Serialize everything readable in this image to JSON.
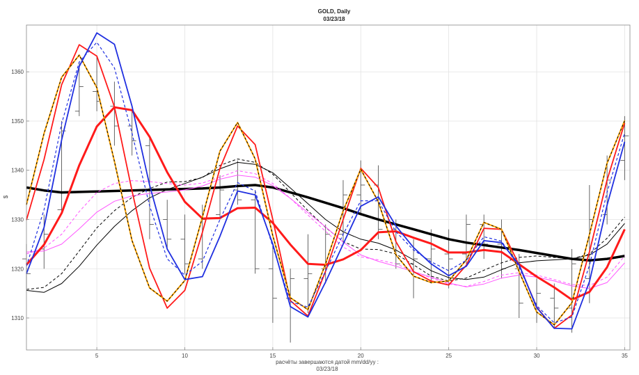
{
  "chart_data": {
    "type": "line",
    "title": "GOLD,          Daily",
    "subtitle": "03/23/18",
    "xlabel": "расчёты завершаются датой  mm/dd/yy :",
    "xlabel2": "03/23/18",
    "ylabel": "$",
    "xlim": [
      1,
      35.3
    ],
    "ylim": [
      1303.5,
      1369.5
    ],
    "xticks": [
      5,
      10,
      15,
      20,
      25,
      30,
      35
    ],
    "yticks": [
      1310,
      1320,
      1330,
      1340,
      1350,
      1360
    ],
    "grid": true,
    "colors": {
      "blue": "#1f2fe0",
      "red": "#ff1a1a",
      "orange": "#ffa500",
      "black": "#000000",
      "magenta": "#ff55ff",
      "gray": "#555555"
    },
    "bars": [
      {
        "x": 1,
        "high": 1325,
        "low": 1316,
        "open": 1322,
        "close": 1319
      },
      {
        "x": 2,
        "high": 1331,
        "low": 1320,
        "open": 1324,
        "close": 1327
      },
      {
        "x": 3,
        "high": 1350,
        "low": 1331,
        "open": 1332,
        "close": 1348
      },
      {
        "x": 4,
        "high": 1362,
        "low": 1351,
        "open": 1352,
        "close": 1357
      },
      {
        "x": 5,
        "high": 1363,
        "low": 1352,
        "open": 1356,
        "close": 1354
      },
      {
        "x": 6,
        "high": 1358,
        "low": 1345,
        "open": 1353,
        "close": 1349
      },
      {
        "x": 7,
        "high": 1352,
        "low": 1343,
        "open": 1349,
        "close": 1346
      },
      {
        "x": 8,
        "high": 1347,
        "low": 1326,
        "open": 1345,
        "close": 1329
      },
      {
        "x": 9,
        "high": 1334,
        "low": 1324,
        "open": 1330,
        "close": 1326
      },
      {
        "x": 10,
        "high": 1331,
        "low": 1319,
        "open": 1326,
        "close": 1321
      },
      {
        "x": 11,
        "high": 1333,
        "low": 1320,
        "open": 1322,
        "close": 1330
      },
      {
        "x": 12,
        "high": 1339,
        "low": 1330,
        "open": 1331,
        "close": 1336
      },
      {
        "x": 13,
        "high": 1342,
        "low": 1333,
        "open": 1336,
        "close": 1334
      },
      {
        "x": 14,
        "high": 1336,
        "low": 1319,
        "open": 1334,
        "close": 1320
      },
      {
        "x": 15,
        "high": 1325,
        "low": 1309,
        "open": 1320,
        "close": 1314
      },
      {
        "x": 16,
        "high": 1320,
        "low": 1305,
        "open": 1314,
        "close": 1318
      },
      {
        "x": 17,
        "high": 1327,
        "low": 1311,
        "open": 1318,
        "close": 1319
      },
      {
        "x": 18,
        "high": 1329,
        "low": 1317,
        "open": 1320,
        "close": 1327
      },
      {
        "x": 19,
        "high": 1338,
        "low": 1325,
        "open": 1327,
        "close": 1335
      },
      {
        "x": 20,
        "high": 1342,
        "low": 1331,
        "open": 1335,
        "close": 1337
      },
      {
        "x": 21,
        "high": 1341,
        "low": 1326,
        "open": 1337,
        "close": 1328
      },
      {
        "x": 22,
        "high": 1330,
        "low": 1320,
        "open": 1328,
        "close": 1321
      },
      {
        "x": 23,
        "high": 1326,
        "low": 1314,
        "open": 1321,
        "close": 1322
      },
      {
        "x": 24,
        "high": 1328,
        "low": 1317,
        "open": 1322,
        "close": 1324
      },
      {
        "x": 25,
        "high": 1328,
        "low": 1316,
        "open": 1323,
        "close": 1322
      },
      {
        "x": 26,
        "high": 1331,
        "low": 1321,
        "open": 1323,
        "close": 1329
      },
      {
        "x": 27,
        "high": 1331,
        "low": 1322,
        "open": 1329,
        "close": 1325
      },
      {
        "x": 28,
        "high": 1330,
        "low": 1318,
        "open": 1325,
        "close": 1320
      },
      {
        "x": 29,
        "high": 1323,
        "low": 1310,
        "open": 1320,
        "close": 1313
      },
      {
        "x": 30,
        "high": 1318,
        "low": 1309,
        "open": 1313,
        "close": 1315
      },
      {
        "x": 31,
        "high": 1317,
        "low": 1308,
        "open": 1314,
        "close": 1312
      },
      {
        "x": 32,
        "high": 1324,
        "low": 1307,
        "open": 1312,
        "close": 1321
      },
      {
        "x": 33,
        "high": 1337,
        "low": 1313,
        "open": 1318,
        "close": 1330
      },
      {
        "x": 34,
        "high": 1343,
        "low": 1329,
        "open": 1331,
        "close": 1338
      },
      {
        "x": 35,
        "high": 1351,
        "low": 1338,
        "open": 1342,
        "close": 1347
      }
    ],
    "series": [
      {
        "color": "#000000",
        "width": 3.5,
        "dash": "",
        "x": [
          1,
          2,
          3,
          4,
          5,
          6,
          7,
          8,
          9,
          10,
          11,
          12,
          13,
          14,
          15,
          16,
          17,
          18,
          19,
          20,
          21,
          22,
          23,
          24,
          25,
          26,
          27,
          28,
          29,
          30,
          31,
          32,
          33,
          34,
          35
        ],
        "values": [
          1336.5,
          1335.9,
          1335.5,
          1335.6,
          1335.7,
          1335.8,
          1335.9,
          1336.0,
          1336.1,
          1336.2,
          1336.3,
          1336.5,
          1336.8,
          1337.0,
          1336.5,
          1335.5,
          1334.5,
          1333.4,
          1332.3,
          1331.1,
          1330.0,
          1329.0,
          1328.0,
          1327.0,
          1326.0,
          1325.3,
          1324.8,
          1324.3,
          1323.8,
          1323.2,
          1322.6,
          1322.0,
          1321.7,
          1322.0,
          1322.6
        ]
      },
      {
        "color": "#000000",
        "width": 1,
        "dash": "",
        "x": [
          1,
          2,
          3,
          4,
          5,
          6,
          7,
          8,
          9,
          10,
          11,
          12,
          13,
          14,
          15,
          16,
          17,
          18,
          19,
          20,
          21,
          22,
          23,
          24,
          25,
          26,
          27,
          28,
          29,
          30,
          31,
          32,
          33,
          34,
          35
        ],
        "values": [
          1315.6,
          1315.2,
          1317.0,
          1320.5,
          1324.8,
          1328.6,
          1331.8,
          1334.4,
          1336.1,
          1337.3,
          1338.6,
          1340.3,
          1341.6,
          1341.2,
          1339.5,
          1336.4,
          1333.2,
          1330.0,
          1327.5,
          1326.0,
          1325.2,
          1323.8,
          1321.8,
          1319.6,
          1318.2,
          1317.8,
          1318.3,
          1319.8,
          1321.2,
          1321.6,
          1321.8,
          1322.0,
          1322.8,
          1325.0,
          1329.2
        ]
      },
      {
        "color": "#000000",
        "width": 1,
        "dash": "4,3",
        "x": [
          1,
          2,
          3,
          4,
          5,
          6,
          7,
          8,
          9,
          10,
          11,
          12,
          13,
          14,
          15,
          16,
          17,
          18,
          19,
          20,
          21,
          22,
          23,
          24,
          25,
          26,
          27,
          28,
          29,
          30,
          31,
          32,
          33,
          34,
          35
        ],
        "values": [
          1315.8,
          1316.2,
          1319.0,
          1323.6,
          1328.3,
          1331.8,
          1334.5,
          1336.3,
          1337.6,
          1337.7,
          1338.5,
          1341.0,
          1342.3,
          1341.6,
          1339.2,
          1335.5,
          1331.8,
          1328.4,
          1325.5,
          1324.0,
          1323.9,
          1323.0,
          1320.8,
          1318.5,
          1317.5,
          1318.1,
          1319.7,
          1321.2,
          1322.3,
          1322.6,
          1322.3,
          1322.0,
          1323.0,
          1326.2,
          1330.5
        ]
      },
      {
        "color": "#ff55ff",
        "width": 1,
        "dash": "",
        "x": [
          1,
          2,
          3,
          4,
          5,
          6,
          7,
          8,
          9,
          10,
          11,
          12,
          13,
          14,
          15,
          16,
          17,
          18,
          19,
          20,
          21,
          22,
          23,
          24,
          25,
          26,
          27,
          28,
          29,
          30,
          31,
          32,
          33,
          34,
          35
        ],
        "values": [
          1323.4,
          1323.6,
          1325.0,
          1328.1,
          1331.5,
          1333.7,
          1334.8,
          1335.3,
          1335.6,
          1336.0,
          1336.8,
          1338.2,
          1339.0,
          1338.6,
          1336.9,
          1334.3,
          1331.4,
          1328.5,
          1325.4,
          1322.8,
          1321.5,
          1320.5,
          1319.4,
          1318.3,
          1317.1,
          1316.3,
          1316.9,
          1318.1,
          1318.7,
          1318.3,
          1317.5,
          1316.5,
          1316.0,
          1317.2,
          1321.2
        ]
      },
      {
        "color": "#ff55ff",
        "width": 1,
        "dash": "4,3",
        "x": [
          1,
          2,
          3,
          4,
          5,
          6,
          7,
          8,
          9,
          10,
          11,
          12,
          13,
          14,
          15,
          16,
          17,
          18,
          19,
          20,
          21,
          22,
          23,
          24,
          25,
          26,
          27,
          28,
          29,
          30,
          31,
          32,
          33,
          34,
          35
        ],
        "values": [
          1323.0,
          1324.2,
          1327.0,
          1331.6,
          1335.5,
          1337.3,
          1337.9,
          1337.7,
          1337.3,
          1337.0,
          1337.4,
          1338.6,
          1339.9,
          1339.3,
          1337.3,
          1334.3,
          1330.9,
          1327.6,
          1324.4,
          1322.4,
          1321.8,
          1321.0,
          1319.5,
          1318.1,
          1316.9,
          1316.4,
          1317.4,
          1318.7,
          1319.2,
          1318.7,
          1317.8,
          1316.8,
          1316.6,
          1318.3,
          1322.6
        ]
      },
      {
        "color": "#ff1a1a",
        "width": 3,
        "dash": "",
        "x": [
          1,
          2,
          3,
          4,
          5,
          6,
          7,
          8,
          9,
          10,
          11,
          12,
          13,
          14,
          15,
          16,
          17,
          18,
          19,
          20,
          21,
          22,
          23,
          24,
          25,
          26,
          27,
          28,
          29,
          30,
          31,
          32,
          33,
          34,
          35
        ],
        "values": [
          1320.8,
          1324.9,
          1331.3,
          1341.0,
          1348.9,
          1352.8,
          1352.2,
          1346.8,
          1339.6,
          1333.6,
          1330.2,
          1330.3,
          1332.3,
          1332.4,
          1329.3,
          1324.9,
          1321.0,
          1320.8,
          1321.9,
          1323.8,
          1327.4,
          1327.6,
          1326.3,
          1325.1,
          1323.3,
          1323.3,
          1323.8,
          1323.4,
          1320.9,
          1318.4,
          1316.2,
          1313.7,
          1315.3,
          1320.3,
          1328.0
        ]
      },
      {
        "color": "#ff1a1a",
        "width": 1.8,
        "dash": "",
        "x": [
          1,
          2,
          3,
          4,
          5,
          6,
          7,
          8,
          9,
          10,
          11,
          12,
          13,
          14,
          15,
          16,
          17,
          18,
          19,
          20,
          21,
          22,
          23,
          24,
          25,
          26,
          27,
          28,
          29,
          30,
          31,
          32,
          33,
          34,
          35
        ],
        "values": [
          1329.9,
          1342.2,
          1357.4,
          1365.5,
          1363.2,
          1352.9,
          1335.8,
          1320.1,
          1312.0,
          1315.6,
          1327.4,
          1340.4,
          1349.0,
          1345.2,
          1330.0,
          1313.5,
          1310.4,
          1319.5,
          1330.0,
          1340.4,
          1336.5,
          1325.5,
          1319.4,
          1317.5,
          1316.7,
          1320.7,
          1328.2,
          1328.0,
          1320.8,
          1312.2,
          1307.9,
          1310.6,
          1323.5,
          1338.0,
          1349.6
        ]
      },
      {
        "color": "#ffa500",
        "width": 2,
        "dash": "",
        "x": [
          1,
          2,
          3,
          4,
          5,
          6,
          7,
          8,
          9,
          10,
          11,
          12,
          13,
          14,
          15,
          16,
          17,
          18,
          19,
          20,
          21,
          22,
          23,
          24,
          25,
          26,
          27,
          28,
          29,
          30,
          31,
          32,
          33,
          34,
          35
        ],
        "values": [
          1333.0,
          1347.5,
          1358.9,
          1363.4,
          1356.8,
          1341.8,
          1325.7,
          1316.1,
          1313.4,
          1317.6,
          1330.5,
          1343.9,
          1349.7,
          1342.3,
          1326.7,
          1314.1,
          1311.7,
          1321.0,
          1331.8,
          1340.2,
          1333.6,
          1322.8,
          1318.5,
          1317.2,
          1317.5,
          1321.8,
          1329.4,
          1328.0,
          1319.4,
          1311.2,
          1308.6,
          1313.1,
          1327.0,
          1341.4,
          1350.1
        ]
      },
      {
        "color": "#000000",
        "width": 1,
        "dash": "3,3",
        "x": [
          1,
          2,
          3,
          4,
          5,
          6,
          7,
          8,
          9,
          10,
          11,
          12,
          13,
          14,
          15,
          16,
          17,
          18,
          19,
          20,
          21,
          22,
          23,
          24,
          25,
          26,
          27,
          28,
          29,
          30,
          31,
          32,
          33,
          34,
          35
        ],
        "values": [
          1333.0,
          1347.5,
          1358.9,
          1363.4,
          1356.8,
          1341.8,
          1325.7,
          1316.1,
          1313.4,
          1317.6,
          1330.5,
          1343.9,
          1349.7,
          1342.3,
          1326.7,
          1314.1,
          1311.7,
          1321.0,
          1331.8,
          1340.2,
          1333.6,
          1322.8,
          1318.5,
          1317.2,
          1317.5,
          1321.8,
          1329.4,
          1328.0,
          1319.4,
          1311.2,
          1308.6,
          1313.1,
          1327.0,
          1341.4,
          1350.1
        ]
      },
      {
        "color": "#1f2fe0",
        "width": 1.8,
        "dash": "",
        "x": [
          1,
          2,
          3,
          4,
          5,
          6,
          7,
          8,
          9,
          10,
          11,
          12,
          13,
          14,
          15,
          16,
          17,
          18,
          19,
          20,
          21,
          22,
          23,
          24,
          25,
          26,
          27,
          28,
          29,
          30,
          31,
          32,
          33,
          34,
          35
        ],
        "values": [
          1319.0,
          1328.4,
          1346.2,
          1361.1,
          1367.9,
          1365.6,
          1353.0,
          1337.0,
          1324.0,
          1317.8,
          1318.4,
          1326.6,
          1335.8,
          1335.0,
          1325.0,
          1312.3,
          1310.2,
          1317.3,
          1325.0,
          1332.7,
          1334.6,
          1328.7,
          1324.3,
          1321.0,
          1318.6,
          1320.5,
          1325.7,
          1325.3,
          1320.8,
          1312.1,
          1307.9,
          1307.8,
          1317.4,
          1332.9,
          1345.8
        ]
      },
      {
        "color": "#1f2fe0",
        "width": 1.2,
        "dash": "4,3",
        "x": [
          1,
          2,
          3,
          4,
          5,
          6,
          7,
          8,
          9,
          10,
          11,
          12,
          13,
          14,
          15,
          16,
          17,
          18,
          19,
          20,
          21,
          22,
          23,
          24,
          25,
          26,
          27,
          28,
          29,
          30,
          31,
          32,
          33,
          34,
          35
        ],
        "values": [
          1320.5,
          1332.0,
          1349.5,
          1362.0,
          1366.0,
          1360.8,
          1347.5,
          1332.8,
          1322.0,
          1318.7,
          1321.5,
          1330.0,
          1337.5,
          1335.8,
          1324.5,
          1313.3,
          1312.2,
          1319.5,
          1327.0,
          1333.8,
          1333.8,
          1327.5,
          1323.8,
          1321.4,
          1319.6,
          1321.7,
          1326.5,
          1325.6,
          1320.3,
          1312.5,
          1309.0,
          1310.2,
          1320.7,
          1335.5,
          1347.6
        ]
      }
    ]
  }
}
